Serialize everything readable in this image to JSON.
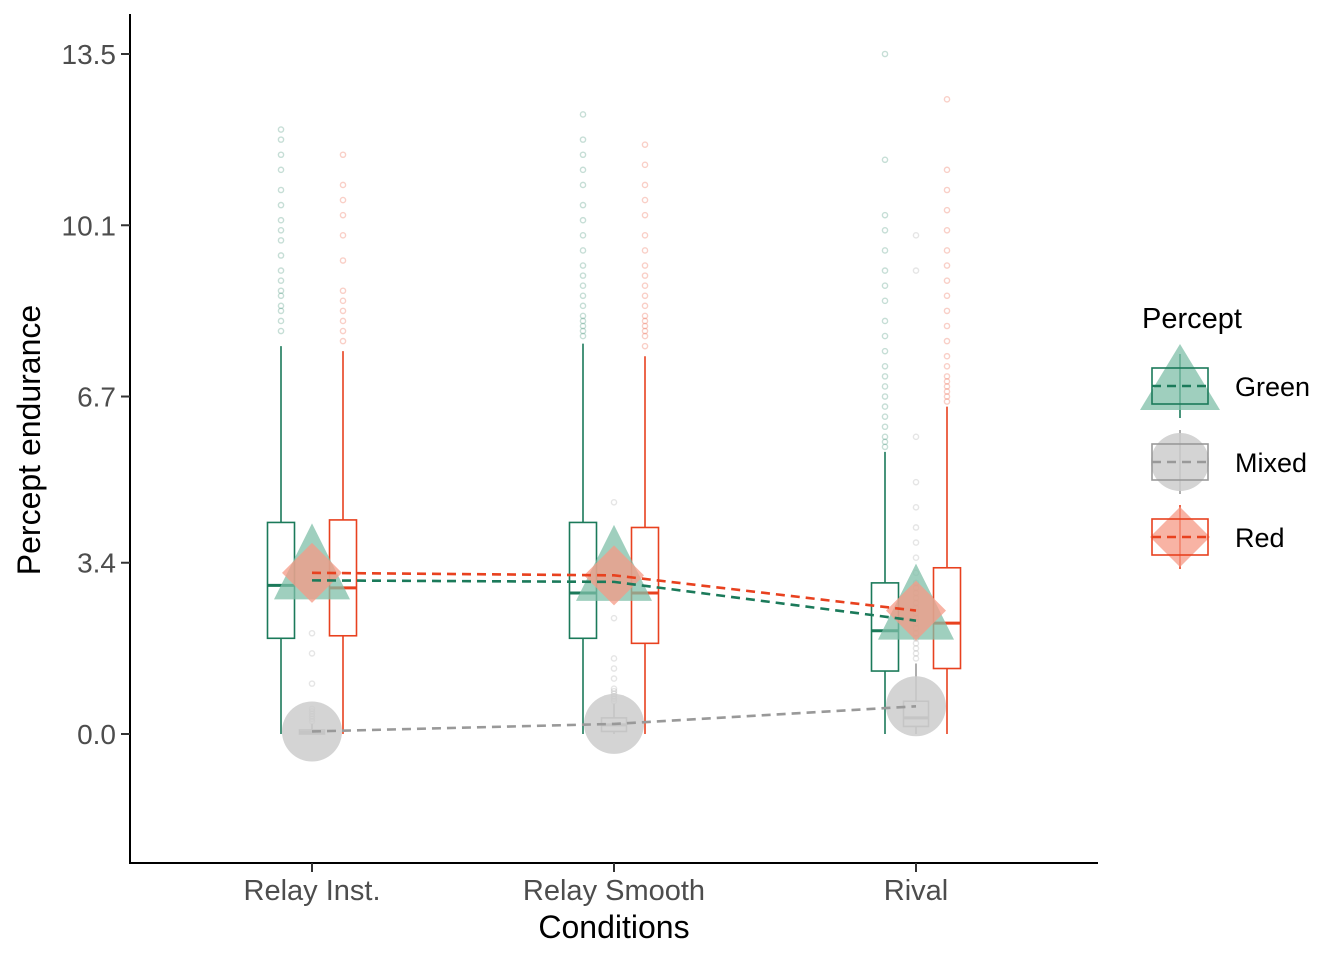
{
  "chart_data": {
    "type": "boxplot",
    "xlabel": "Conditions",
    "ylabel": "Percept endurance",
    "categories": [
      "Relay Inst.",
      "Relay Smooth",
      "Rival"
    ],
    "y_ticks": [
      0.0,
      3.4,
      6.7,
      10.1,
      13.5
    ],
    "y_tick_labels": [
      "0.0",
      "3.4",
      "6.7",
      "10.1",
      "13.5"
    ],
    "ylim": [
      -2.5,
      14.2
    ],
    "legend": {
      "title": "Percept",
      "position": "right",
      "entries": [
        "Green",
        "Mixed",
        "Red"
      ]
    },
    "series": [
      {
        "name": "Green",
        "color": "#1b7a5a",
        "fill": "#7fbfa8",
        "marker": "triangle",
        "means": [
          3.05,
          3.02,
          2.25
        ],
        "boxes": [
          {
            "min": 0.0,
            "q1": 1.9,
            "median": 2.95,
            "q3": 4.2,
            "max": 7.7,
            "outliers": [
              8.0,
              8.2,
              8.4,
              8.5,
              8.7,
              8.8,
              9.0,
              9.2,
              9.5,
              9.8,
              10.0,
              10.2,
              10.5,
              10.8,
              11.2,
              11.5,
              11.8,
              12.0
            ]
          },
          {
            "min": 0.0,
            "q1": 1.9,
            "median": 2.8,
            "q3": 4.2,
            "max": 7.75,
            "outliers": [
              7.9,
              8.0,
              8.1,
              8.2,
              8.3,
              8.5,
              8.7,
              8.9,
              9.1,
              9.3,
              9.6,
              9.9,
              10.2,
              10.5,
              10.9,
              11.2,
              11.5,
              11.8,
              12.3
            ]
          },
          {
            "min": 0.0,
            "q1": 1.25,
            "median": 2.05,
            "q3": 3.0,
            "max": 5.6,
            "outliers": [
              5.7,
              5.8,
              5.9,
              6.1,
              6.3,
              6.5,
              6.7,
              6.9,
              7.1,
              7.3,
              7.6,
              7.9,
              8.2,
              8.6,
              8.9,
              9.2,
              9.6,
              10.0,
              10.3,
              11.4,
              13.5
            ]
          }
        ]
      },
      {
        "name": "Mixed",
        "color": "#999999",
        "fill": "#cccccc",
        "marker": "circle",
        "means": [
          0.05,
          0.2,
          0.55
        ],
        "boxes": [
          {
            "min": 0.0,
            "q1": 0.0,
            "median": 0.03,
            "q3": 0.08,
            "max": 0.2,
            "outliers": [
              0.25,
              0.3,
              0.35,
              0.4,
              0.45,
              0.5,
              1.0,
              1.6,
              2.0
            ]
          },
          {
            "min": 0.0,
            "q1": 0.05,
            "median": 0.18,
            "q3": 0.32,
            "max": 0.6,
            "outliers": [
              0.65,
              0.7,
              0.75,
              0.8,
              0.85,
              0.9,
              1.1,
              1.3,
              1.5,
              2.3,
              4.6
            ]
          },
          {
            "min": 0.0,
            "q1": 0.15,
            "median": 0.32,
            "q3": 0.65,
            "max": 1.4,
            "outliers": [
              1.5,
              1.6,
              1.7,
              1.8,
              1.9,
              2.0,
              2.1,
              2.2,
              2.3,
              2.4,
              2.5,
              2.6,
              2.7,
              2.8,
              2.9,
              3.0,
              3.2,
              3.5,
              3.8,
              4.1,
              4.5,
              5.0,
              5.9,
              9.2,
              9.9
            ]
          }
        ]
      },
      {
        "name": "Red",
        "color": "#e8411f",
        "fill": "#f59a85",
        "marker": "diamond",
        "means": [
          3.2,
          3.15,
          2.45
        ],
        "boxes": [
          {
            "min": 0.0,
            "q1": 1.95,
            "median": 2.9,
            "q3": 4.25,
            "max": 7.6,
            "outliers": [
              7.8,
              8.0,
              8.2,
              8.4,
              8.6,
              8.8,
              9.4,
              9.9,
              10.3,
              10.6,
              10.9,
              11.5
            ]
          },
          {
            "min": 0.0,
            "q1": 1.8,
            "median": 2.8,
            "q3": 4.1,
            "max": 7.5,
            "outliers": [
              7.7,
              7.9,
              8.0,
              8.1,
              8.2,
              8.3,
              8.5,
              8.7,
              8.9,
              9.1,
              9.3,
              9.6,
              9.9,
              10.3,
              10.6,
              10.9,
              11.3,
              11.7
            ]
          },
          {
            "min": 0.0,
            "q1": 1.3,
            "median": 2.2,
            "q3": 3.3,
            "max": 6.5,
            "outliers": [
              6.6,
              6.7,
              6.8,
              6.9,
              7.0,
              7.1,
              7.3,
              7.5,
              7.8,
              8.1,
              8.4,
              8.7,
              9.0,
              9.3,
              9.6,
              10.0,
              10.4,
              10.8,
              11.2,
              12.6
            ]
          }
        ]
      }
    ]
  }
}
